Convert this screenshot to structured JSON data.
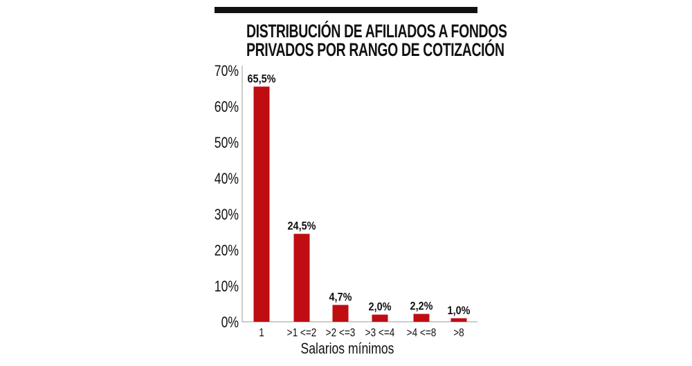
{
  "chart_data": {
    "type": "bar",
    "title": "DISTRIBUCIÓN DE AFILIADOS A FONDOS PRIVADOS POR RANGO DE COTIZACIÓN",
    "title_lines": [
      "DISTRIBUCIÓN DE AFILIADOS A FONDOS",
      "PRIVADOS POR RANGO DE COTIZACIÓN"
    ],
    "categories": [
      "1",
      ">1 <=2",
      ">2 <=3",
      ">3 <=4",
      ">4 <=8",
      ">8"
    ],
    "values": [
      65.5,
      24.5,
      4.7,
      2.0,
      2.2,
      1.0
    ],
    "data_labels": [
      "65,5%",
      "24,5%",
      "4,7%",
      "2,0%",
      "2,2%",
      "1,0%"
    ],
    "xlabel": "Salarios mínimos",
    "ylabel": "",
    "ylim": [
      0,
      70
    ],
    "yticks": [
      "0%",
      "10%",
      "20%",
      "30%",
      "40%",
      "50%",
      "60%",
      "70%"
    ],
    "grid": false,
    "bar_color": "#c00d12"
  }
}
